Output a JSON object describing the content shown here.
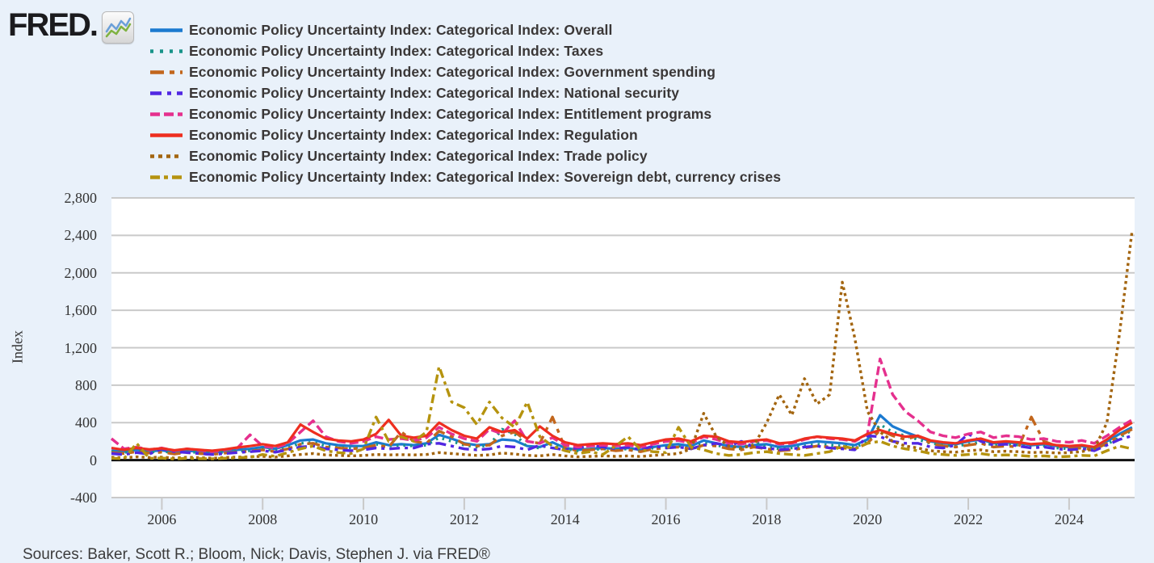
{
  "logo": {
    "text": "FRED.",
    "icon": "fred-line-chart-icon"
  },
  "sources_line": "Sources: Baker, Scott R.; Bloom, Nick; Davis, Stephen J. via FRED®",
  "colors": {
    "background": "#e9f1fa",
    "plot_background": "#ffffff",
    "gridline": "#c9c9c9",
    "zero_line": "#111111",
    "axis_text": "#333333",
    "legend_text": "#3a3737"
  },
  "chart_data": {
    "type": "line",
    "title": "",
    "xlabel": "",
    "ylabel": "Index",
    "grid": "horizontal",
    "legend_position": "top-left",
    "y_axis": {
      "min": -400,
      "max": 2800,
      "ticks": [
        -400,
        0,
        400,
        800,
        1200,
        1600,
        2000,
        2400,
        2800
      ],
      "tick_labels": [
        "-400",
        "0",
        "400",
        "800",
        "1,200",
        "1,600",
        "2,000",
        "2,400",
        "2,800"
      ]
    },
    "x_axis": {
      "min": 2005.0,
      "max": 2025.3,
      "ticks": [
        2006,
        2008,
        2010,
        2012,
        2014,
        2016,
        2018,
        2020,
        2022,
        2024
      ],
      "tick_labels": [
        "2006",
        "2008",
        "2010",
        "2012",
        "2014",
        "2016",
        "2018",
        "2020",
        "2022",
        "2024"
      ]
    },
    "x_start": 2005.0,
    "x_step": 0.25,
    "zero_line": 0,
    "series": [
      {
        "name": "overall",
        "label": "Economic Policy Uncertainty Index: Categorical Index: Overall",
        "color": "#1b7ad0",
        "style": "solid",
        "dash": "",
        "legend_dash": "",
        "values": [
          100,
          90,
          110,
          95,
          105,
          85,
          100,
          90,
          80,
          95,
          110,
          120,
          140,
          120,
          160,
          210,
          220,
          180,
          160,
          150,
          150,
          190,
          160,
          170,
          160,
          180,
          270,
          230,
          180,
          160,
          170,
          220,
          210,
          150,
          140,
          190,
          130,
          110,
          120,
          130,
          120,
          130,
          110,
          140,
          160,
          170,
          150,
          210,
          180,
          150,
          140,
          160,
          170,
          140,
          150,
          180,
          200,
          190,
          180,
          160,
          220,
          480,
          360,
          300,
          250,
          200,
          180,
          170,
          200,
          220,
          180,
          190,
          180,
          160,
          170,
          150,
          140,
          150,
          130,
          200,
          280,
          350
        ]
      },
      {
        "name": "taxes",
        "label": "Economic Policy Uncertainty Index: Categorical Index: Taxes",
        "color": "#18948a",
        "style": "dotted",
        "dash": "2.5 6",
        "legend_dash": "4 8",
        "values": [
          90,
          80,
          100,
          85,
          95,
          75,
          90,
          80,
          70,
          85,
          95,
          100,
          120,
          100,
          130,
          180,
          190,
          150,
          140,
          130,
          140,
          170,
          150,
          160,
          150,
          160,
          240,
          200,
          160,
          140,
          160,
          330,
          280,
          140,
          130,
          170,
          120,
          100,
          110,
          120,
          110,
          120,
          100,
          130,
          140,
          150,
          130,
          180,
          160,
          130,
          120,
          200,
          140,
          120,
          130,
          150,
          170,
          160,
          150,
          140,
          190,
          380,
          300,
          260,
          220,
          180,
          160,
          150,
          170,
          190,
          160,
          170,
          160,
          140,
          150,
          130,
          120,
          130,
          110,
          170,
          240,
          320
        ]
      },
      {
        "name": "government-spending",
        "label": "Economic Policy Uncertainty Index: Categorical Index: Government spending",
        "color": "#c2661c",
        "style": "dashed",
        "dash": "16 7 5 7",
        "legend_dash": "17 7 6 7",
        "values": [
          80,
          70,
          90,
          75,
          85,
          65,
          80,
          70,
          60,
          75,
          85,
          95,
          110,
          90,
          120,
          170,
          180,
          140,
          130,
          120,
          130,
          160,
          140,
          300,
          200,
          180,
          310,
          250,
          170,
          150,
          160,
          260,
          300,
          200,
          180,
          460,
          130,
          100,
          110,
          120,
          100,
          110,
          90,
          120,
          130,
          140,
          120,
          160,
          150,
          120,
          110,
          140,
          120,
          100,
          110,
          130,
          150,
          140,
          130,
          120,
          180,
          320,
          260,
          220,
          260,
          180,
          150,
          140,
          160,
          180,
          140,
          150,
          140,
          460,
          200,
          150,
          120,
          130,
          110,
          180,
          260,
          330
        ]
      },
      {
        "name": "national-security",
        "label": "Economic Policy Uncertainty Index: Categorical Index: National security",
        "color": "#5127e2",
        "style": "dashed",
        "dash": "13 6 4 6",
        "legend_dash": "14 7 5 7",
        "values": [
          70,
          60,
          80,
          65,
          120,
          90,
          80,
          70,
          60,
          70,
          80,
          90,
          100,
          85,
          110,
          140,
          150,
          120,
          110,
          100,
          110,
          130,
          120,
          130,
          130,
          170,
          180,
          150,
          120,
          110,
          120,
          150,
          140,
          110,
          160,
          130,
          110,
          130,
          160,
          140,
          120,
          140,
          110,
          150,
          130,
          140,
          120,
          160,
          180,
          150,
          200,
          140,
          130,
          110,
          120,
          140,
          150,
          130,
          120,
          110,
          260,
          250,
          200,
          180,
          180,
          140,
          130,
          160,
          280,
          200,
          160,
          170,
          150,
          130,
          140,
          120,
          110,
          120,
          100,
          160,
          220,
          260
        ]
      },
      {
        "name": "entitlement-programs",
        "label": "Economic Policy Uncertainty Index: Categorical Index: Entitlement programs",
        "color": "#e5308e",
        "style": "dashed",
        "dash": "11 5",
        "legend_dash": "12 5",
        "values": [
          230,
          120,
          140,
          110,
          130,
          100,
          120,
          105,
          90,
          110,
          130,
          270,
          150,
          130,
          180,
          300,
          420,
          250,
          200,
          180,
          200,
          250,
          220,
          230,
          210,
          240,
          350,
          280,
          230,
          200,
          330,
          280,
          420,
          200,
          180,
          240,
          160,
          140,
          150,
          160,
          150,
          160,
          140,
          170,
          200,
          210,
          180,
          250,
          220,
          180,
          170,
          200,
          210,
          170,
          180,
          220,
          250,
          230,
          220,
          200,
          280,
          1080,
          700,
          520,
          420,
          300,
          260,
          240,
          280,
          300,
          240,
          260,
          250,
          220,
          230,
          200,
          190,
          210,
          180,
          260,
          350,
          430
        ]
      },
      {
        "name": "regulation",
        "label": "Economic Policy Uncertainty Index: Categorical Index: Regulation",
        "color": "#ee2e1f",
        "style": "solid",
        "dash": "",
        "legend_dash": "",
        "values": [
          130,
          110,
          130,
          115,
          125,
          105,
          120,
          110,
          100,
          115,
          135,
          150,
          170,
          150,
          190,
          380,
          300,
          230,
          210,
          200,
          220,
          280,
          430,
          260,
          240,
          260,
          400,
          320,
          260,
          230,
          350,
          300,
          320,
          230,
          360,
          260,
          190,
          160,
          170,
          180,
          170,
          180,
          160,
          190,
          220,
          230,
          200,
          260,
          250,
          200,
          190,
          210,
          220,
          180,
          190,
          230,
          250,
          240,
          230,
          210,
          280,
          320,
          280,
          250,
          260,
          210,
          190,
          180,
          210,
          230,
          190,
          200,
          190,
          170,
          180,
          160,
          150,
          160,
          140,
          220,
          320,
          400
        ]
      },
      {
        "name": "trade-policy",
        "label": "Economic Policy Uncertainty Index: Categorical Index: Trade policy",
        "color": "#a3650f",
        "style": "dotted",
        "dash": "3.5 4",
        "legend_dash": "5 5",
        "values": [
          30,
          25,
          35,
          28,
          32,
          22,
          30,
          26,
          20,
          28,
          32,
          36,
          40,
          32,
          45,
          60,
          70,
          55,
          50,
          45,
          50,
          60,
          55,
          58,
          55,
          60,
          80,
          70,
          60,
          50,
          55,
          75,
          65,
          50,
          45,
          60,
          45,
          35,
          40,
          45,
          40,
          45,
          38,
          50,
          60,
          70,
          120,
          500,
          250,
          150,
          130,
          160,
          400,
          700,
          480,
          870,
          600,
          700,
          1900,
          1300,
          520,
          300,
          200,
          150,
          130,
          100,
          90,
          85,
          100,
          110,
          90,
          95,
          90,
          80,
          85,
          75,
          80,
          90,
          120,
          400,
          1350,
          2450
        ]
      },
      {
        "name": "sovereign-debt-currency-crises",
        "label": "Economic Policy Uncertainty Index: Categorical Index: Sovereign debt, currency crises",
        "color": "#b5930e",
        "style": "dash-dot",
        "dash": "11 5 4 5",
        "legend_dash": "12 5 5 5",
        "values": [
          20,
          15,
          180,
          18,
          22,
          12,
          20,
          16,
          15,
          20,
          25,
          30,
          60,
          40,
          80,
          120,
          150,
          100,
          80,
          70,
          120,
          460,
          200,
          250,
          200,
          300,
          1000,
          620,
          560,
          380,
          620,
          450,
          350,
          620,
          250,
          150,
          100,
          70,
          90,
          60,
          150,
          250,
          110,
          90,
          80,
          350,
          140,
          110,
          70,
          50,
          60,
          80,
          90,
          70,
          60,
          50,
          70,
          90,
          150,
          120,
          180,
          200,
          150,
          120,
          100,
          70,
          60,
          50,
          60,
          70,
          50,
          55,
          50,
          40,
          45,
          35,
          40,
          50,
          45,
          100,
          150,
          120
        ]
      }
    ]
  }
}
